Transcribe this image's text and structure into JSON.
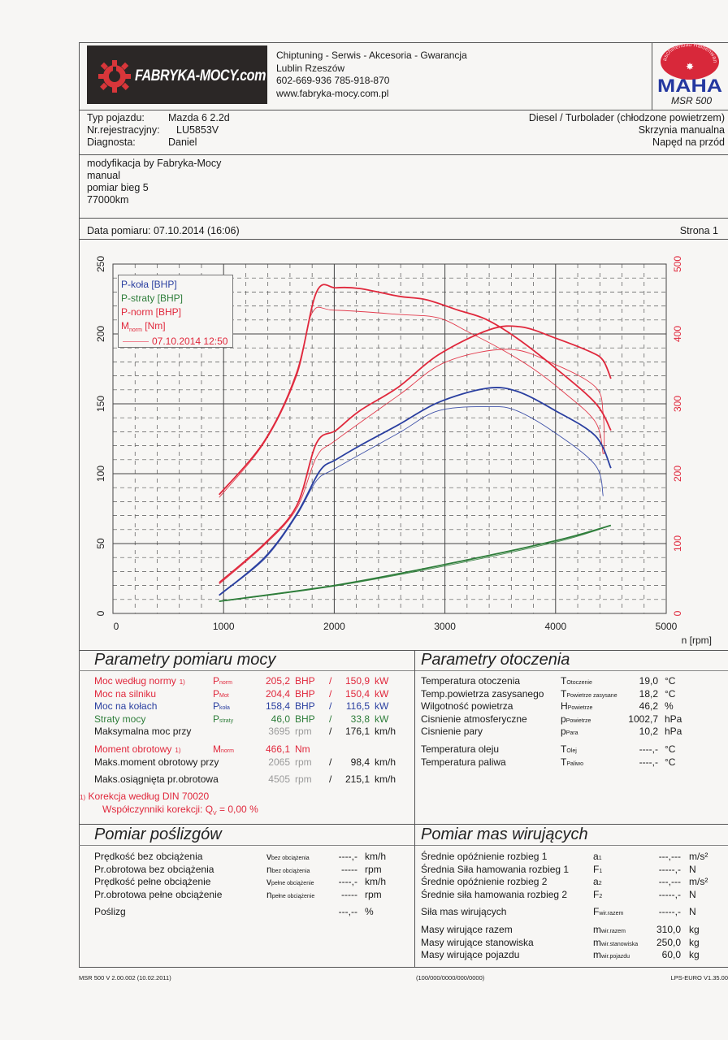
{
  "header": {
    "logo_text": "FABRYKA-MOCY.com",
    "slogan": "Chiptuning - Serwis - Akcesoria - Gwarancja",
    "cities": "Lublin Rzeszów",
    "phones": "602-669-936  785-918-870",
    "website": "www.fabryka-mocy.com.pl",
    "maha_ring": "Maschinenbau Haldenwang",
    "maha_text": "MAHA",
    "maha_model": "MSR 500"
  },
  "vehicle": {
    "rows": [
      {
        "label": "Typ pojazdu:",
        "value": "Mazda 6 2.2d"
      },
      {
        "label": "Nr.rejestracyjny:",
        "value": "LU5853V"
      },
      {
        "label": "Diagnosta:",
        "value": "Daniel"
      }
    ],
    "engine": "Diesel / Turbolader (chłodzone powietrzem)",
    "gearbox": "Skrzynia manualna",
    "drive": "Napęd na przód"
  },
  "notes": [
    "modyfikacja by Fabryka-Mocy",
    "manual",
    "pomiar bieg 5",
    "77000km"
  ],
  "date_row": {
    "date": "Data pomiaru: 07.10.2014 (16:06)",
    "page": "Strona 1"
  },
  "chart_data": {
    "type": "line",
    "xlabel": "n [rpm]",
    "xlim": [
      0,
      5000
    ],
    "x_ticks": [
      "0",
      "1000",
      "2000",
      "3000",
      "4000",
      "5000"
    ],
    "ylim_left": [
      0,
      250
    ],
    "y_ticks_left": [
      "0",
      "50",
      "100",
      "150",
      "200",
      "250"
    ],
    "ylim_right": [
      0,
      500
    ],
    "y_ticks_right": [
      "0",
      "100",
      "200",
      "300",
      "400",
      "500"
    ],
    "grid": true,
    "legend_position": "top-left",
    "legend": [
      {
        "label": "P-koła [BHP]",
        "color": "#2a3fa0"
      },
      {
        "label": "P-straty [BHP]",
        "color": "#2e7d3a"
      },
      {
        "label": "P-norm [BHP]",
        "color": "#e0283c"
      },
      {
        "label": "M",
        "sub": "norm",
        "suffix": " [Nm]",
        "color": "#e0283c"
      }
    ],
    "comparison_label": "07.10.2014 12:50",
    "series": [
      {
        "name": "M-norm",
        "axis": "right",
        "run": "current",
        "color": "#e0283c",
        "points": [
          [
            960,
            170
          ],
          [
            1370,
            247
          ],
          [
            1660,
            344
          ],
          [
            1840,
            460
          ],
          [
            2015,
            466
          ],
          [
            2230,
            465
          ],
          [
            2580,
            454
          ],
          [
            2830,
            449
          ],
          [
            3120,
            434
          ],
          [
            3370,
            421
          ],
          [
            3650,
            394
          ],
          [
            4000,
            351
          ],
          [
            4360,
            301
          ],
          [
            4500,
            262
          ]
        ]
      },
      {
        "name": "M-norm",
        "axis": "right",
        "run": "07.10.2014 12:50",
        "color": "#e0283c",
        "points": [
          [
            960,
            166
          ],
          [
            1370,
            245
          ],
          [
            1660,
            340
          ],
          [
            1800,
            430
          ],
          [
            2000,
            434
          ],
          [
            2580,
            428
          ],
          [
            2940,
            423
          ],
          [
            3220,
            402
          ],
          [
            3510,
            378
          ],
          [
            3790,
            351
          ],
          [
            4070,
            317
          ],
          [
            4360,
            274
          ],
          [
            4430,
            228
          ]
        ]
      },
      {
        "name": "P-norm",
        "axis": "left",
        "run": "current",
        "color": "#e0283c",
        "points": [
          [
            960,
            22
          ],
          [
            1370,
            50
          ],
          [
            1660,
            77
          ],
          [
            1840,
            122
          ],
          [
            2015,
            131
          ],
          [
            2230,
            145
          ],
          [
            2580,
            162
          ],
          [
            2940,
            185
          ],
          [
            3400,
            203
          ],
          [
            3690,
            205
          ],
          [
            4000,
            197
          ],
          [
            4320,
            187
          ],
          [
            4430,
            181
          ],
          [
            4500,
            168
          ]
        ]
      },
      {
        "name": "P-norm",
        "axis": "left",
        "run": "07.10.2014 12:50",
        "color": "#e0283c",
        "points": [
          [
            960,
            21
          ],
          [
            1370,
            49
          ],
          [
            1660,
            75
          ],
          [
            1840,
            112
          ],
          [
            2015,
            124
          ],
          [
            2580,
            156
          ],
          [
            3010,
            180
          ],
          [
            3580,
            189
          ],
          [
            4000,
            178
          ],
          [
            4360,
            162
          ],
          [
            4430,
            143
          ],
          [
            4440,
            114
          ]
        ]
      },
      {
        "name": "P-koła",
        "axis": "left",
        "run": "current",
        "color": "#2a3fa0",
        "points": [
          [
            960,
            13
          ],
          [
            1370,
            40
          ],
          [
            1660,
            71
          ],
          [
            1870,
            102
          ],
          [
            2015,
            110
          ],
          [
            2230,
            120
          ],
          [
            2580,
            135
          ],
          [
            2940,
            151
          ],
          [
            3370,
            161
          ],
          [
            3650,
            159
          ],
          [
            4000,
            145
          ],
          [
            4360,
            127
          ],
          [
            4500,
            104
          ]
        ]
      },
      {
        "name": "P-koła",
        "axis": "left",
        "run": "07.10.2014 12:50",
        "color": "#2a3fa0",
        "points": [
          [
            960,
            13
          ],
          [
            1370,
            39
          ],
          [
            1660,
            70
          ],
          [
            1840,
            95
          ],
          [
            2015,
            104
          ],
          [
            2580,
            129
          ],
          [
            2940,
            145
          ],
          [
            3400,
            148
          ],
          [
            3650,
            145
          ],
          [
            4000,
            129
          ],
          [
            4360,
            106
          ],
          [
            4430,
            84
          ]
        ]
      },
      {
        "name": "P-straty",
        "axis": "left",
        "run": "current",
        "color": "#2e7d3a",
        "points": [
          [
            960,
            8.7
          ],
          [
            2000,
            20
          ],
          [
            3000,
            35
          ],
          [
            4000,
            52
          ],
          [
            4500,
            63
          ]
        ]
      },
      {
        "name": "P-straty",
        "axis": "left",
        "run": "07.10.2014 12:50",
        "color": "#2e7d3a",
        "points": [
          [
            960,
            8.5
          ],
          [
            2000,
            19.5
          ],
          [
            3000,
            34
          ],
          [
            4000,
            51
          ],
          [
            4430,
            61
          ]
        ]
      }
    ]
  },
  "power": {
    "title": "Parametry pomiaru mocy",
    "groups": [
      [
        {
          "label": "Moc według normy",
          "sup": "1)",
          "sym": "P",
          "sub": "norm",
          "val": "205,2",
          "unit": "BHP",
          "sep": "/",
          "val2": "150,9",
          "unit2": "kW",
          "color": "#e0283c"
        },
        {
          "label": "Moc na silniku",
          "sym": "P",
          "sub": "Mot",
          "val": "204,4",
          "unit": "BHP",
          "sep": "/",
          "val2": "150,4",
          "unit2": "kW",
          "color": "#e0283c"
        },
        {
          "label": "Moc na kołach",
          "sym": "P",
          "sub": "koła",
          "val": "158,4",
          "unit": "BHP",
          "sep": "/",
          "val2": "116,5",
          "unit2": "kW",
          "color": "#2a3fa0"
        },
        {
          "label": "Straty mocy",
          "sym": "P",
          "sub": "straty",
          "val": "46,0",
          "unit": "BHP",
          "sep": "/",
          "val2": "33,8",
          "unit2": "kW",
          "color": "#2e7d3a"
        },
        {
          "label": "Maksymalna moc przy",
          "val": "3695",
          "unit": "rpm",
          "dim": true,
          "sep": "/",
          "val2": "176,1",
          "unit2": "km/h",
          "color": "#1a1a1a"
        }
      ],
      [
        {
          "label": "Moment obrotowy",
          "sup": "1)",
          "sym": "M",
          "sub": "norm",
          "val": "466,1",
          "unit": "Nm",
          "color": "#e0283c"
        },
        {
          "label": "Maks.moment obrotowy przy",
          "val": "2065",
          "unit": "rpm",
          "dim": true,
          "sep": "/",
          "val2": "98,4",
          "unit2": "km/h",
          "color": "#1a1a1a"
        }
      ],
      [
        {
          "label": "Maks.osiągnięta pr.obrotowa",
          "val": "4505",
          "unit": "rpm",
          "dim": true,
          "sep": "/",
          "val2": "215,1",
          "unit2": "km/h",
          "color": "#1a1a1a"
        }
      ]
    ],
    "note_marker": "1)",
    "note_line1": "Korekcja według DIN 70020",
    "note_line2_prefix": "Współczynniki korekcji: Q",
    "note_line2_sub": "V",
    "note_line2_suffix": " =   0,00 %"
  },
  "environment": {
    "title": "Parametry otoczenia",
    "groups": [
      [
        {
          "label": "Temperatura otoczenia",
          "sym": "T",
          "sub": "Otoczenie",
          "val": "19,0",
          "unit": "°C"
        },
        {
          "label": "Temp.powietrza zasysanego",
          "sym": "T",
          "sub": "Powietrze zasysane",
          "val": "18,2",
          "unit": "°C"
        },
        {
          "label": "Wilgotność powietrza",
          "sym": "H",
          "sub": "Powietrze",
          "val": "46,2",
          "unit": "%"
        },
        {
          "label": "Cisnienie atmosferyczne",
          "sym": "p",
          "sub": "Powietrze",
          "val": "1002,7",
          "unit": "hPa"
        },
        {
          "label": "Cisnienie pary",
          "sym": "p",
          "sub": "Para",
          "val": "10,2",
          "unit": "hPa"
        }
      ],
      [
        {
          "label": "Temperatura oleju",
          "sym": "T",
          "sub": "Olej",
          "val": "----,-",
          "unit": "°C"
        },
        {
          "label": "Temperatura paliwa",
          "sym": "T",
          "sub": "Paliwo",
          "val": "----,-",
          "unit": "°C"
        }
      ]
    ]
  },
  "slip": {
    "title": "Pomiar poślizgów",
    "groups": [
      [
        {
          "label": "Prędkość bez obciążenia",
          "sym": "v",
          "sub": "bez obciążenia",
          "val": "----,-",
          "unit": "km/h"
        },
        {
          "label": "Pr.obrotowa bez obciążenia",
          "sym": "n",
          "sub": "bez obciążenia",
          "val": "-----",
          "unit": "rpm"
        },
        {
          "label": "Prędkość pełne obciążenie",
          "sym": "v",
          "sub": "pełne obciążenie",
          "val": "----,-",
          "unit": "km/h"
        },
        {
          "label": "Pr.obrotowa pełne obciążenie",
          "sym": "n",
          "sub": "pełne obciążenie",
          "val": "-----",
          "unit": "rpm"
        }
      ],
      [
        {
          "label": "Poślizg",
          "val": "---,--",
          "unit": "%"
        }
      ]
    ]
  },
  "masses": {
    "title": "Pomiar mas wirujących",
    "groups": [
      [
        {
          "label": "Średnie opóźnienie rozbieg 1",
          "sym": "a",
          "sub": "1",
          "val": "---,---",
          "unit": "m/s²"
        },
        {
          "label": "Średnia Siła hamowania rozbieg 1",
          "sym": "F",
          "sub": "1",
          "val": "-----,-",
          "unit": "N"
        },
        {
          "label": "Średnie opóźnienie rozbieg 2",
          "sym": "a",
          "sub": "2",
          "val": "---,---",
          "unit": "m/s²"
        },
        {
          "label": "Średnie siła hamowania rozbieg 2",
          "sym": "F",
          "sub": "2",
          "val": "-----,-",
          "unit": "N"
        }
      ],
      [
        {
          "label": "Siła mas wirujących",
          "sym": "F",
          "sub": "wir.razem",
          "val": "-----,-",
          "unit": "N"
        }
      ],
      [
        {
          "label": "Masy wirujące razem",
          "sym": "m",
          "sub": "wir.razem",
          "val": "310,0",
          "unit": "kg"
        },
        {
          "label": "Masy wirujące stanowiska",
          "sym": "m",
          "sub": "wir.stanowiska",
          "val": "250,0",
          "unit": "kg"
        },
        {
          "label": "Masy wirujące pojazdu",
          "sym": "m",
          "sub": "wir.pojazdu",
          "val": "60,0",
          "unit": "kg"
        }
      ]
    ]
  },
  "footer": {
    "left": "MSR 500 V 2.00.002 (10.02.2011)",
    "center": "(100/000/0000/000/0000)",
    "right": "LPS-EURO V1.35.00"
  }
}
